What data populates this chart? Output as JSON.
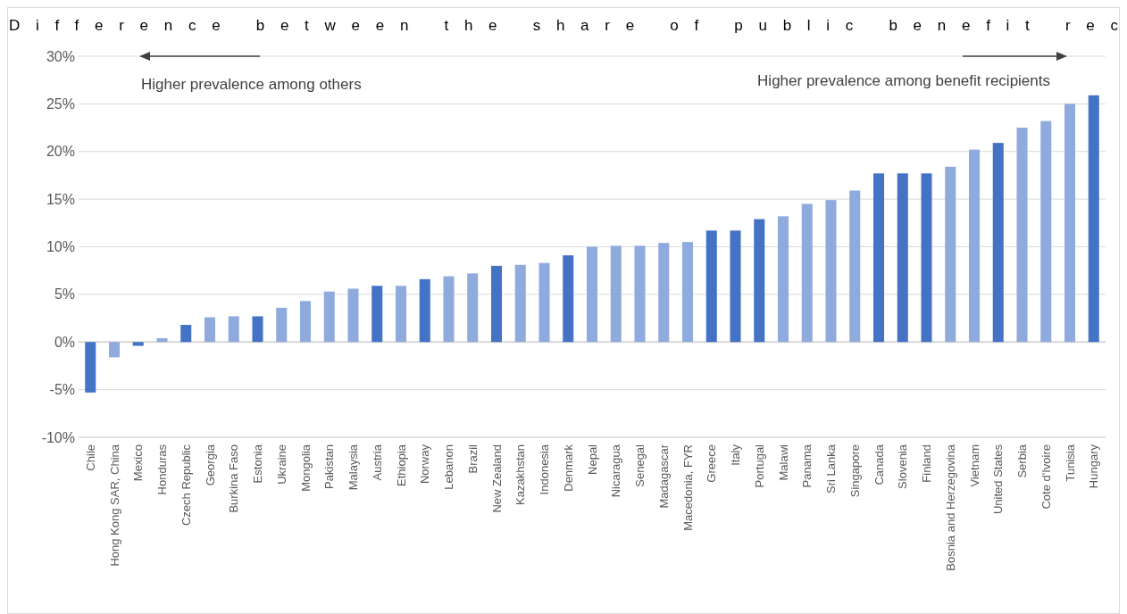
{
  "chart_data": {
    "type": "bar",
    "title": "Difference between the share of public benefit rec",
    "categories": [
      "Chile",
      "Hong Kong SAR, China",
      "Mexico",
      "Honduras",
      "Czech Republic",
      "Georgia",
      "Burkina Faso",
      "Estonia",
      "Ukraine",
      "Mongolia",
      "Pakistan",
      "Malaysia",
      "Austria",
      "Ethiopia",
      "Norway",
      "Lebanon",
      "Brazil",
      "New Zealand",
      "Kazakhstan",
      "Indonesia",
      "Denmark",
      "Nepal",
      "Nicaragua",
      "Senegal",
      "Madagascar",
      "Macedonia, FYR",
      "Greece",
      "Italy",
      "Portugal",
      "Malawi",
      "Panama",
      "Sri Lanka",
      "Singapore",
      "Canada",
      "Slovenia",
      "Finland",
      "Bosnia and Herzegovina",
      "Vietnam",
      "United States",
      "Serbia",
      "Cote d'Ivoire",
      "Tunisia",
      "Hungary"
    ],
    "values": [
      -5.3,
      -1.6,
      -0.4,
      0.4,
      1.8,
      2.6,
      2.7,
      2.7,
      3.6,
      4.3,
      5.3,
      5.6,
      5.9,
      5.9,
      6.6,
      6.9,
      7.2,
      8.0,
      8.1,
      8.3,
      9.1,
      10.0,
      10.1,
      10.1,
      10.4,
      10.5,
      11.7,
      11.7,
      12.9,
      13.2,
      14.5,
      14.9,
      15.9,
      17.7,
      17.7,
      17.7,
      18.4,
      20.2,
      20.9,
      22.5,
      23.2,
      25.0,
      25.9
    ],
    "colors": [
      "#4472c4",
      "#8faadc",
      "#4472c4",
      "#8faadc",
      "#4472c4",
      "#8faadc",
      "#8faadc",
      "#4472c4",
      "#8faadc",
      "#8faadc",
      "#8faadc",
      "#8faadc",
      "#4472c4",
      "#8faadc",
      "#4472c4",
      "#8faadc",
      "#8faadc",
      "#4472c4",
      "#8faadc",
      "#8faadc",
      "#4472c4",
      "#8faadc",
      "#8faadc",
      "#8faadc",
      "#8faadc",
      "#8faadc",
      "#4472c4",
      "#4472c4",
      "#4472c4",
      "#8faadc",
      "#8faadc",
      "#8faadc",
      "#8faadc",
      "#4472c4",
      "#4472c4",
      "#4472c4",
      "#8faadc",
      "#8faadc",
      "#4472c4",
      "#8faadc",
      "#8faadc",
      "#8faadc",
      "#4472c4"
    ],
    "ylim": [
      -10,
      30
    ],
    "yticks": [
      {
        "value": -10,
        "label": "-10%"
      },
      {
        "value": -5,
        "label": "-5%"
      },
      {
        "value": 0,
        "label": "0%"
      },
      {
        "value": 5,
        "label": "5%"
      },
      {
        "value": 10,
        "label": "10%"
      },
      {
        "value": 15,
        "label": "15%"
      },
      {
        "value": 20,
        "label": "20%"
      },
      {
        "value": 25,
        "label": "25%"
      },
      {
        "value": 30,
        "label": "30%"
      }
    ],
    "grid": "y",
    "annotations": [
      "Higher prevalence among others",
      "Higher prevalence among benefit recipients"
    ]
  }
}
